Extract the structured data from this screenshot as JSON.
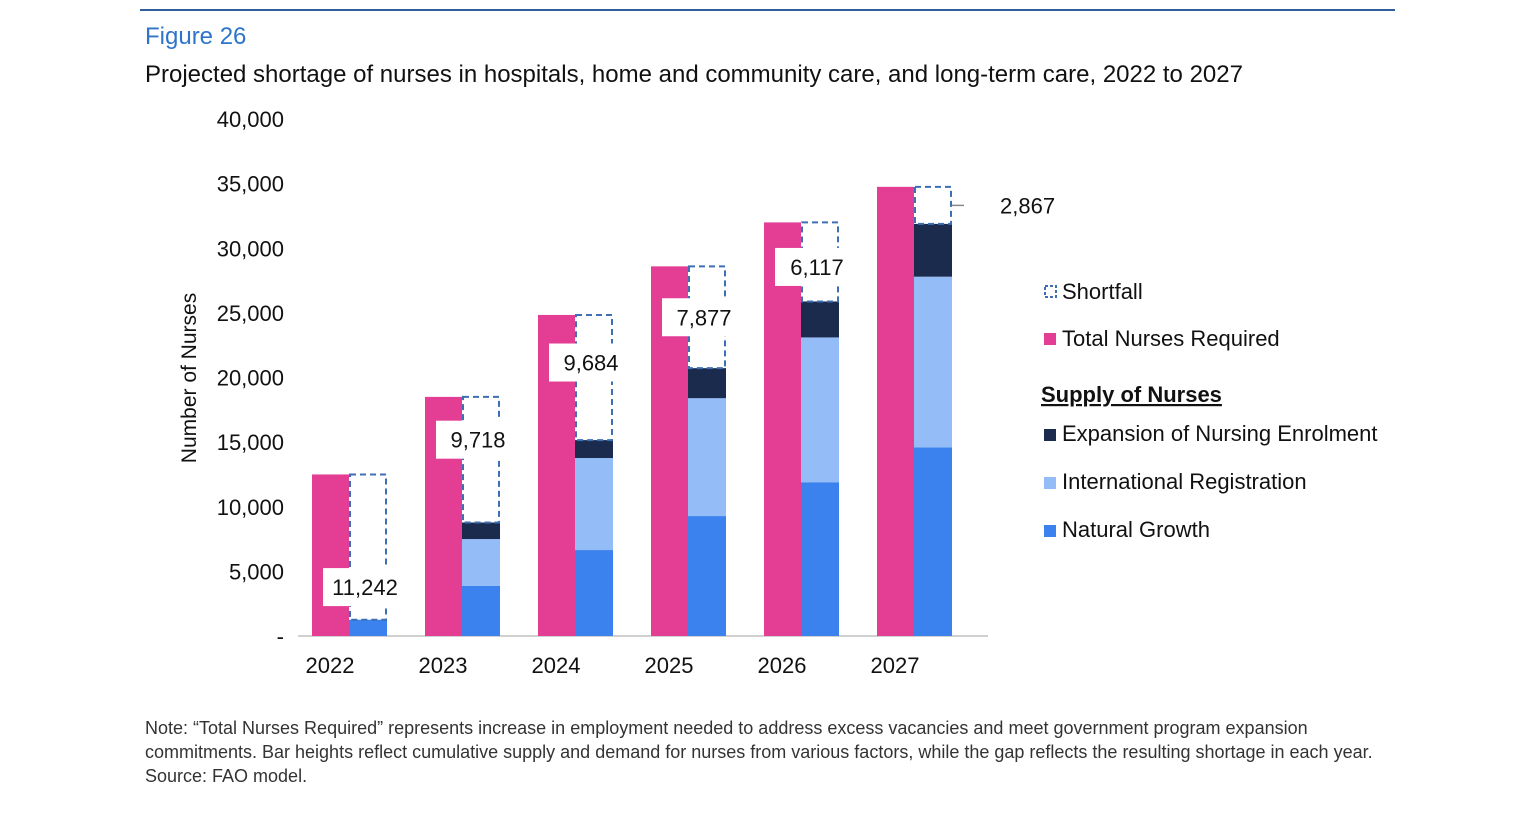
{
  "figure_label": "Figure 26",
  "title": "Projected shortage of nurses in hospitals, home and community care, and long-term care, 2022 to 2027",
  "note": "Note: “Total Nurses Required” represents increase in employment needed to address excess vacancies and meet government program expansion commitments. Bar heights reflect cumulative supply and demand for nurses from various factors, while the gap reflects the resulting shortage in each year.",
  "source": "Source: FAO model.",
  "chart_data": {
    "type": "bar",
    "ylabel": "Number of Nurses",
    "ylim": [
      0,
      40000
    ],
    "yticks": [
      "-",
      "5,000",
      "10,000",
      "15,000",
      "20,000",
      "25,000",
      "30,000",
      "35,000",
      "40,000"
    ],
    "grid": false,
    "legend_position": "right",
    "categories": [
      "2022",
      "2023",
      "2024",
      "2025",
      "2026",
      "2027"
    ],
    "total_required": {
      "name": "Total Nurses Required",
      "color": "#e33d94",
      "values": [
        12500,
        18500,
        24840,
        28600,
        32000,
        34750
      ]
    },
    "supply_heading": "Supply of Nurses",
    "supply_series": [
      {
        "name": "Natural Growth",
        "color": "#3b82ee",
        "values": [
          1258,
          3870,
          6650,
          9280,
          11900,
          14600
        ]
      },
      {
        "name": "International Registration",
        "color": "#94bcf7",
        "values": [
          0,
          3630,
          7120,
          9120,
          11200,
          13200
        ]
      },
      {
        "name": "Expansion of Nursing Enrolment",
        "color": "#1b2b4e",
        "values": [
          0,
          1282,
          1386,
          2323,
          2783,
          4083
        ]
      }
    ],
    "shortfall": {
      "name": "Shortfall",
      "color": "#3d6fb5",
      "values": [
        11242,
        9718,
        9684,
        7877,
        6117,
        2867
      ],
      "labels": [
        "11,242",
        "9,718",
        "9,684",
        "7,877",
        "6,117",
        "2,867"
      ]
    }
  }
}
